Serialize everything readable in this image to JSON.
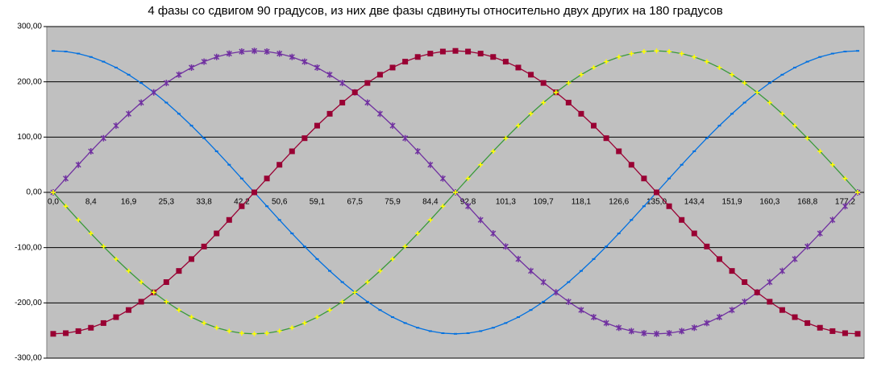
{
  "chart_data": {
    "type": "line",
    "title": "4 фазы со сдвигом 90 градусов, из них две фазы  сдвинуты относительно  двух других на 180 градусов",
    "categories": [
      "0,0",
      null,
      null,
      "8,4",
      null,
      null,
      "16,9",
      null,
      null,
      "25,3",
      null,
      null,
      "33,8",
      null,
      null,
      "42,2",
      null,
      null,
      "50,6",
      null,
      null,
      "59,1",
      null,
      null,
      "67,5",
      null,
      null,
      "75,9",
      null,
      null,
      "84,4",
      null,
      null,
      "92,8",
      null,
      null,
      "101,3",
      null,
      null,
      "109,7",
      null,
      null,
      "118,1",
      null,
      null,
      "126,6",
      null,
      null,
      "135,0",
      null,
      null,
      "143,4",
      null,
      null,
      "151,9",
      null,
      null,
      "160,3",
      null,
      null,
      "168,8",
      null,
      null,
      "177,2",
      null
    ],
    "series": [
      {
        "color": "#0070e0",
        "marker": "dash",
        "marker_color": "#0070e0",
        "values": [
          256,
          254.8,
          251.1,
          245,
          236.5,
          225.8,
          212.9,
          197.9,
          181,
          162.4,
          142.2,
          120.7,
          98,
          74.3,
          49.9,
          25.1,
          0,
          -25.1,
          -49.9,
          -74.3,
          -98,
          -120.7,
          -142.2,
          -162.4,
          -181,
          -197.9,
          -212.9,
          -225.8,
          -236.5,
          -245,
          -251.1,
          -254.8,
          -256,
          -254.8,
          -251.1,
          -245,
          -236.5,
          -225.8,
          -212.9,
          -197.9,
          -181,
          -162.4,
          -142.2,
          -120.7,
          -98,
          -74.3,
          -49.9,
          -25.1,
          0,
          25.1,
          49.9,
          74.3,
          98,
          120.7,
          142.2,
          162.4,
          181,
          197.9,
          212.9,
          225.8,
          236.5,
          245,
          251.1,
          254.8,
          256
        ]
      },
      {
        "color": "#7030a0",
        "marker": "star",
        "marker_color": "#7030a0",
        "values": [
          0,
          25.1,
          49.9,
          74.3,
          98,
          120.7,
          142.2,
          162.4,
          181,
          197.9,
          212.9,
          225.8,
          236.5,
          245,
          251.1,
          254.8,
          256,
          254.8,
          251.1,
          245,
          236.5,
          225.8,
          212.9,
          197.9,
          181,
          162.4,
          142.2,
          120.7,
          98,
          74.3,
          49.9,
          25.1,
          0,
          -25.1,
          -49.9,
          -74.3,
          -98,
          -120.7,
          -142.2,
          -162.4,
          -181,
          -197.9,
          -212.9,
          -225.8,
          -236.5,
          -245,
          -251.1,
          -254.8,
          -256,
          -254.8,
          -251.1,
          -245,
          -236.5,
          -225.8,
          -212.9,
          -197.9,
          -181,
          -162.4,
          -142.2,
          -120.7,
          -98,
          -74.3,
          -49.9,
          -25.1,
          0
        ]
      },
      {
        "color": "#990033",
        "marker": "square",
        "marker_color": "#990033",
        "values": [
          -256,
          -254.8,
          -251.1,
          -245,
          -236.5,
          -225.8,
          -212.9,
          -197.9,
          -181,
          -162.4,
          -142.2,
          -120.7,
          -98,
          -74.3,
          -49.9,
          -25.1,
          0,
          25.1,
          49.9,
          74.3,
          98,
          120.7,
          142.2,
          162.4,
          181,
          197.9,
          212.9,
          225.8,
          236.5,
          245,
          251.1,
          254.8,
          256,
          254.8,
          251.1,
          245,
          236.5,
          225.8,
          212.9,
          197.9,
          181,
          162.4,
          142.2,
          120.7,
          98,
          74.3,
          49.9,
          25.1,
          0,
          -25.1,
          -49.9,
          -74.3,
          -98,
          -120.7,
          -142.2,
          -162.4,
          -181,
          -197.9,
          -212.9,
          -225.8,
          -236.5,
          -245,
          -251.1,
          -254.8,
          -256
        ]
      },
      {
        "color": "#3a9a3a",
        "marker": "plus",
        "marker_color": "#ffff00",
        "values": [
          0,
          -25.1,
          -49.9,
          -74.3,
          -98,
          -120.7,
          -142.2,
          -162.4,
          -181,
          -197.9,
          -212.9,
          -225.8,
          -236.5,
          -245,
          -251.1,
          -254.8,
          -256,
          -254.8,
          -251.1,
          -245,
          -236.5,
          -225.8,
          -212.9,
          -197.9,
          -181,
          -162.4,
          -142.2,
          -120.7,
          -98,
          -74.3,
          -49.9,
          -25.1,
          0,
          25.1,
          49.9,
          74.3,
          98,
          120.7,
          142.2,
          162.4,
          181,
          197.9,
          212.9,
          225.8,
          236.5,
          245,
          251.1,
          254.8,
          256,
          254.8,
          251.1,
          245,
          236.5,
          225.8,
          212.9,
          197.9,
          181,
          162.4,
          142.2,
          120.7,
          98,
          74.3,
          49.9,
          25.1,
          0
        ]
      }
    ],
    "ylim": [
      -300,
      300
    ],
    "yticks": [
      {
        "value": -300,
        "label": "-300,00"
      },
      {
        "value": -200,
        "label": "-200,00"
      },
      {
        "value": -100,
        "label": "-100,00"
      },
      {
        "value": 0,
        "label": "0,00"
      },
      {
        "value": 100,
        "label": "100,00"
      },
      {
        "value": 200,
        "label": "200,00"
      },
      {
        "value": 300,
        "label": "300,00"
      }
    ],
    "grid": true,
    "background": "#c0c0c0"
  }
}
